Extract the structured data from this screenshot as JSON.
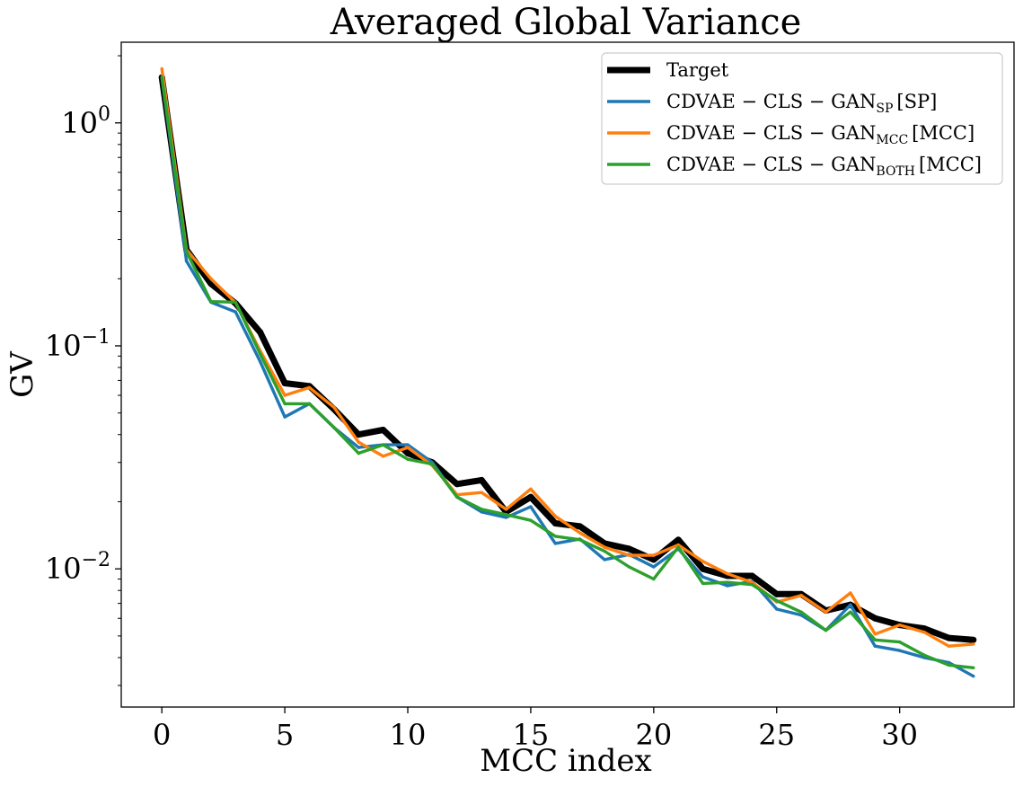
{
  "chart_data": {
    "type": "line",
    "title": "Averaged Global Variance",
    "xlabel": "MCC index",
    "ylabel": "GV",
    "yscale": "log",
    "xlim": [
      -1.65,
      34.65
    ],
    "ylim": [
      0.0024,
      2.3
    ],
    "x_ticks": [
      0,
      5,
      10,
      15,
      20,
      25,
      30
    ],
    "y_ticks": [
      {
        "value": 1,
        "base": "10",
        "exp": "0"
      },
      {
        "value": 0.1,
        "base": "10",
        "exp": "−1"
      },
      {
        "value": 0.01,
        "base": "10",
        "exp": "−2"
      }
    ],
    "x": [
      0,
      1,
      2,
      3,
      4,
      5,
      6,
      7,
      8,
      9,
      10,
      11,
      12,
      13,
      14,
      15,
      16,
      17,
      18,
      19,
      20,
      21,
      22,
      23,
      24,
      25,
      26,
      27,
      28,
      29,
      30,
      31,
      32,
      33
    ],
    "legend_position": "upper right",
    "series": [
      {
        "name": "Target",
        "label_main": "Target",
        "label_sub": "",
        "label_bracket": "",
        "color": "#000000",
        "values": [
          1.6,
          0.27,
          0.19,
          0.155,
          0.115,
          0.068,
          0.066,
          0.052,
          0.04,
          0.042,
          0.033,
          0.03,
          0.024,
          0.025,
          0.018,
          0.021,
          0.016,
          0.0155,
          0.013,
          0.0123,
          0.011,
          0.0135,
          0.01,
          0.0093,
          0.0093,
          0.0077,
          0.0077,
          0.0065,
          0.0069,
          0.006,
          0.0056,
          0.0054,
          0.0049,
          0.0048
        ]
      },
      {
        "name": "CDVAE-CLS-GAN_SP [SP]",
        "label_main": "CDVAE − CLS − GAN",
        "label_sub": "SP",
        "label_bracket": "[SP]",
        "color": "#1f77b4",
        "values": [
          1.6,
          0.24,
          0.157,
          0.142,
          0.085,
          0.048,
          0.055,
          0.043,
          0.035,
          0.036,
          0.036,
          0.03,
          0.021,
          0.018,
          0.017,
          0.019,
          0.013,
          0.0136,
          0.011,
          0.0116,
          0.0102,
          0.0123,
          0.0092,
          0.0084,
          0.0088,
          0.0066,
          0.0062,
          0.0053,
          0.0069,
          0.0045,
          0.0043,
          0.004,
          0.0038,
          0.0033
        ]
      },
      {
        "name": "CDVAE-CLS-GAN_MCC [MCC]",
        "label_main": "CDVAE − CLS − GAN",
        "label_sub": "MCC",
        "label_bracket": "[MCC]",
        "color": "#ff7f0e",
        "values": [
          1.75,
          0.27,
          0.2,
          0.156,
          0.095,
          0.06,
          0.065,
          0.053,
          0.037,
          0.032,
          0.035,
          0.029,
          0.0215,
          0.022,
          0.0185,
          0.0228,
          0.0172,
          0.0145,
          0.0125,
          0.0115,
          0.0115,
          0.0128,
          0.0108,
          0.0095,
          0.0087,
          0.0071,
          0.0076,
          0.0064,
          0.0078,
          0.0051,
          0.0056,
          0.0052,
          0.0045,
          0.0046
        ]
      },
      {
        "name": "CDVAE-CLS-GAN_BOTH [MCC]",
        "label_main": "CDVAE − CLS − GAN",
        "label_sub": "BOTH",
        "label_bracket": "[MCC]",
        "color": "#2ca02c",
        "values": [
          1.6,
          0.265,
          0.158,
          0.157,
          0.092,
          0.055,
          0.055,
          0.043,
          0.033,
          0.036,
          0.031,
          0.0295,
          0.021,
          0.0185,
          0.0175,
          0.0165,
          0.014,
          0.0135,
          0.012,
          0.0102,
          0.009,
          0.0125,
          0.0086,
          0.0087,
          0.0085,
          0.0072,
          0.0064,
          0.0053,
          0.0064,
          0.0048,
          0.0047,
          0.0041,
          0.0037,
          0.0036
        ]
      }
    ]
  }
}
